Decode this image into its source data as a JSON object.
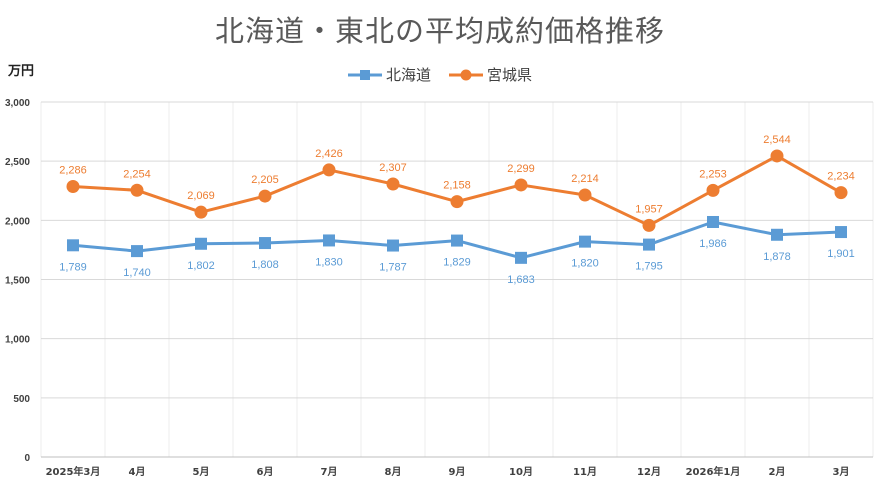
{
  "chart_data": {
    "type": "line",
    "title": "北海道・東北の平均成約価格推移",
    "ylabel": "万円",
    "xlabel": "",
    "ylim": [
      0,
      3000
    ],
    "yticks": [
      0,
      500,
      1000,
      1500,
      2000,
      2500,
      3000
    ],
    "ytick_labels": [
      "0",
      "500",
      "1,000",
      "1,500",
      "2,000",
      "2,500",
      "3,000"
    ],
    "grid": true,
    "legend_position": "top",
    "categories": [
      "2025年3月",
      "4月",
      "5月",
      "6月",
      "7月",
      "8月",
      "9月",
      "10月",
      "11月",
      "12月",
      "2026年1月",
      "2月",
      "3月"
    ],
    "series": [
      {
        "name": "北海道",
        "color": "#5B9BD5",
        "marker": "square",
        "label_position": "below",
        "values": [
          1789,
          1740,
          1802,
          1808,
          1830,
          1787,
          1829,
          1683,
          1820,
          1795,
          1986,
          1878,
          1901
        ]
      },
      {
        "name": "宮城県",
        "color": "#ED7D31",
        "marker": "circle",
        "label_position": "above",
        "values": [
          2286,
          2254,
          2069,
          2205,
          2426,
          2307,
          2158,
          2299,
          2214,
          1957,
          2253,
          2544,
          2234
        ]
      }
    ]
  }
}
